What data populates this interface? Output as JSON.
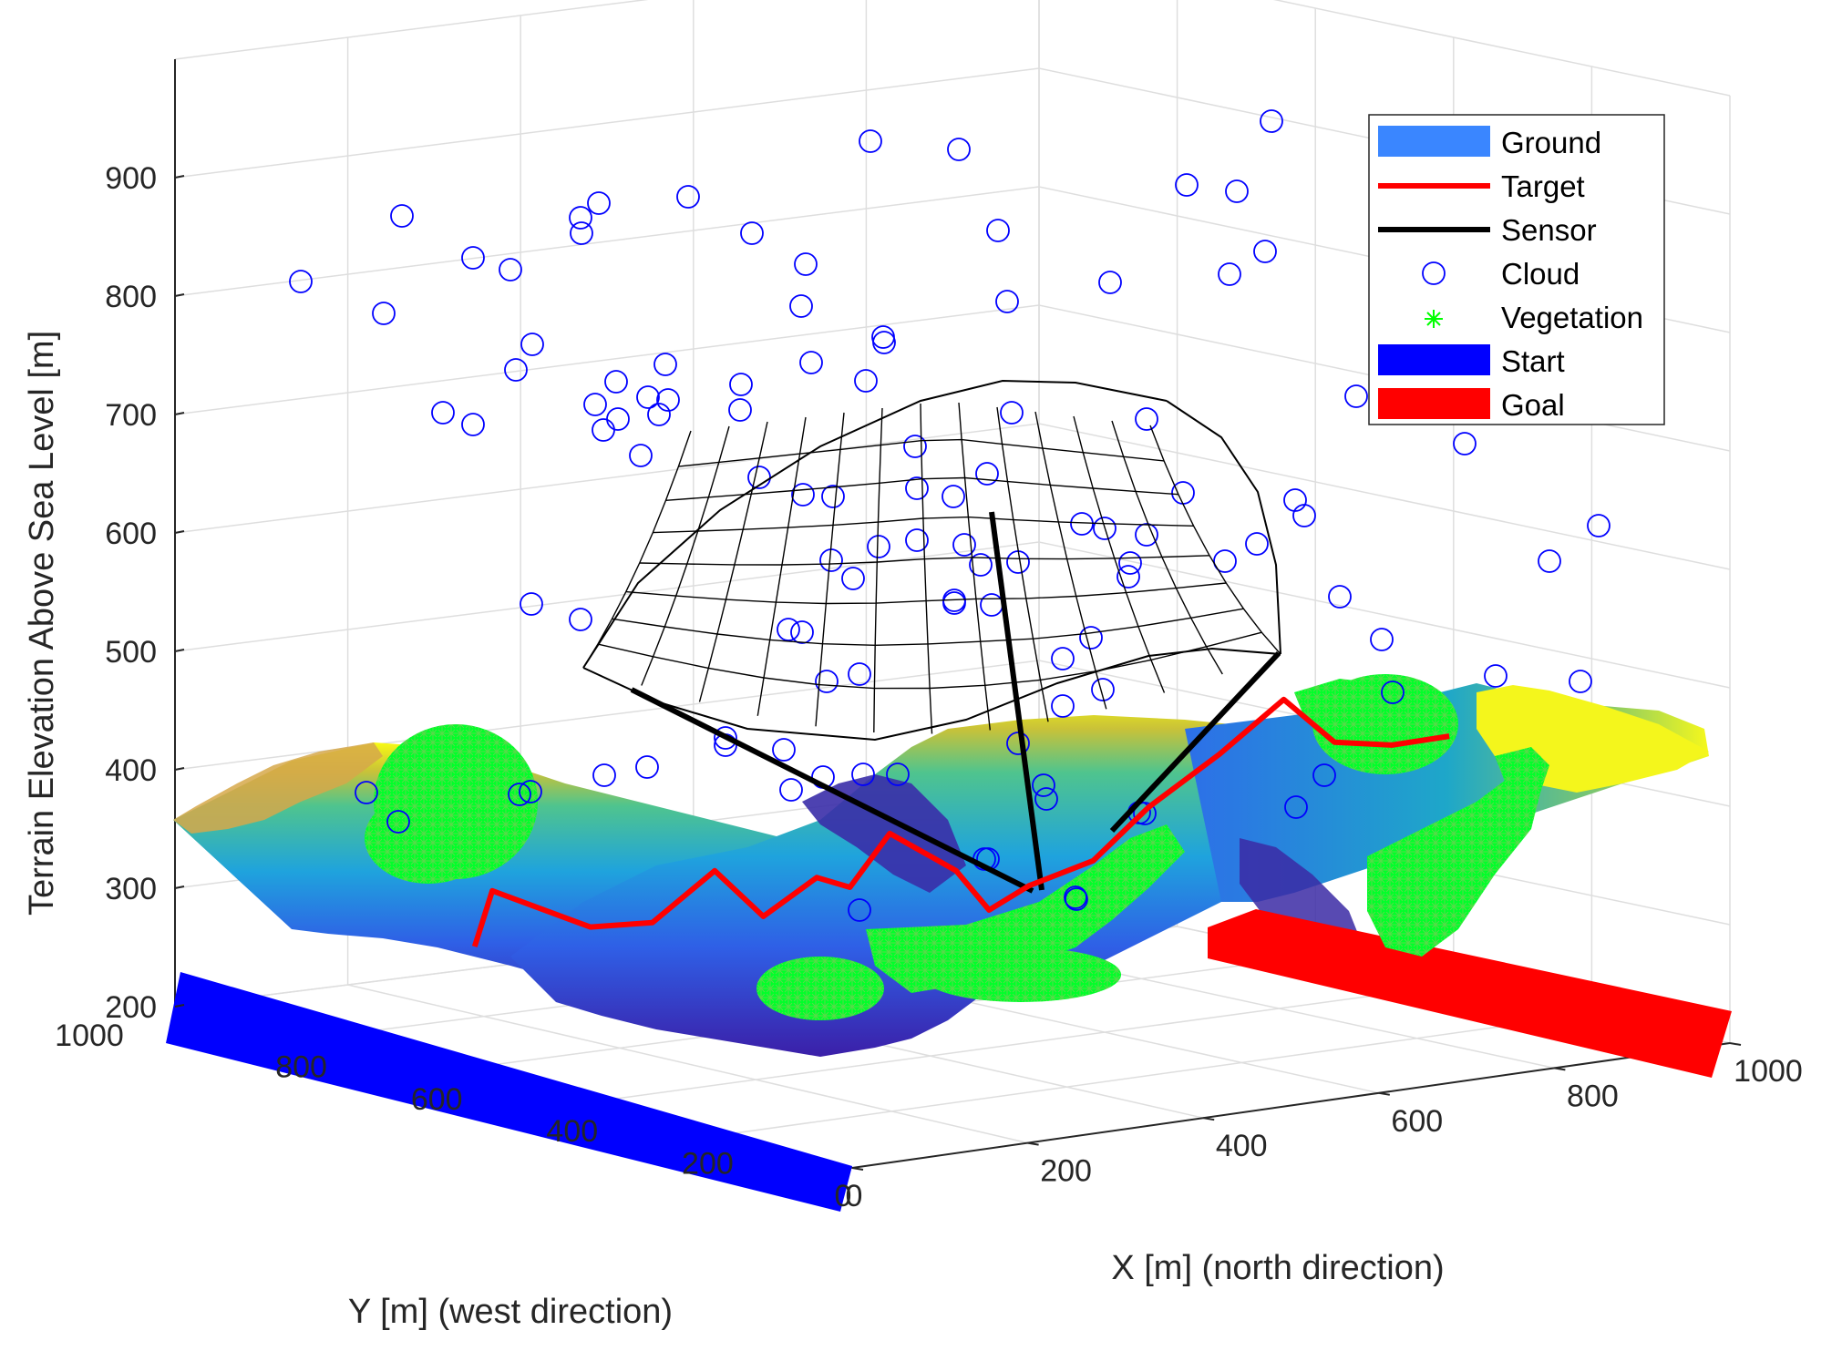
{
  "chart_data": {
    "type": "surface3d",
    "xlabel": "X [m] (north direction)",
    "ylabel": "Y [m] (west direction)",
    "zlabel": "Terrain Elevation Above Sea Level [m]",
    "x_ticks": [
      "0",
      "200",
      "400",
      "600",
      "800",
      "1000"
    ],
    "y_ticks": [
      "1000",
      "800",
      "600",
      "400",
      "200",
      "0"
    ],
    "z_ticks": [
      "200",
      "300",
      "400",
      "500",
      "600",
      "700",
      "800",
      "900"
    ],
    "xlim": [
      0,
      1000
    ],
    "ylim": [
      0,
      1000
    ],
    "zlim": [
      200,
      1000
    ],
    "grid": true,
    "legend_position": "top-right",
    "legend": [
      {
        "label": "Ground",
        "kind": "patch",
        "color": "#3a86ff"
      },
      {
        "label": "Target",
        "kind": "line",
        "color": "#ff0000"
      },
      {
        "label": "Sensor",
        "kind": "line",
        "color": "#000000"
      },
      {
        "label": "Cloud",
        "kind": "circle",
        "color": "#0000ff"
      },
      {
        "label": "Vegetation",
        "kind": "star",
        "color": "#00ff00"
      },
      {
        "label": "Start",
        "kind": "patch",
        "color": "#0000ff"
      },
      {
        "label": "Goal",
        "kind": "patch",
        "color": "#ff0000"
      }
    ],
    "start_region": {
      "x": [
        0,
        50
      ],
      "y": [
        0,
        1000
      ],
      "z": 200
    },
    "goal_region": {
      "x": [
        950,
        1000
      ],
      "y": [
        0,
        1000
      ],
      "z": 200
    },
    "sensor": {
      "position": [
        500,
        500,
        670
      ],
      "footprint_ground_z": 300
    },
    "target_path": [
      {
        "x": 110,
        "y": 700,
        "z": 280
      },
      {
        "x": 130,
        "y": 700,
        "z": 325
      },
      {
        "x": 180,
        "y": 620,
        "z": 300
      },
      {
        "x": 220,
        "y": 580,
        "z": 305
      },
      {
        "x": 260,
        "y": 540,
        "z": 350
      },
      {
        "x": 300,
        "y": 520,
        "z": 310
      },
      {
        "x": 330,
        "y": 480,
        "z": 345
      },
      {
        "x": 360,
        "y": 470,
        "z": 335
      },
      {
        "x": 390,
        "y": 450,
        "z": 380
      },
      {
        "x": 450,
        "y": 430,
        "z": 345
      },
      {
        "x": 480,
        "y": 420,
        "z": 310
      },
      {
        "x": 510,
        "y": 400,
        "z": 330
      },
      {
        "x": 560,
        "y": 370,
        "z": 350
      },
      {
        "x": 600,
        "y": 340,
        "z": 395
      },
      {
        "x": 650,
        "y": 300,
        "z": 440
      },
      {
        "x": 700,
        "y": 270,
        "z": 485
      },
      {
        "x": 750,
        "y": 260,
        "z": 445
      },
      {
        "x": 800,
        "y": 240,
        "z": 440
      },
      {
        "x": 850,
        "y": 220,
        "z": 445
      }
    ],
    "clouds_screen_count": 96
  }
}
